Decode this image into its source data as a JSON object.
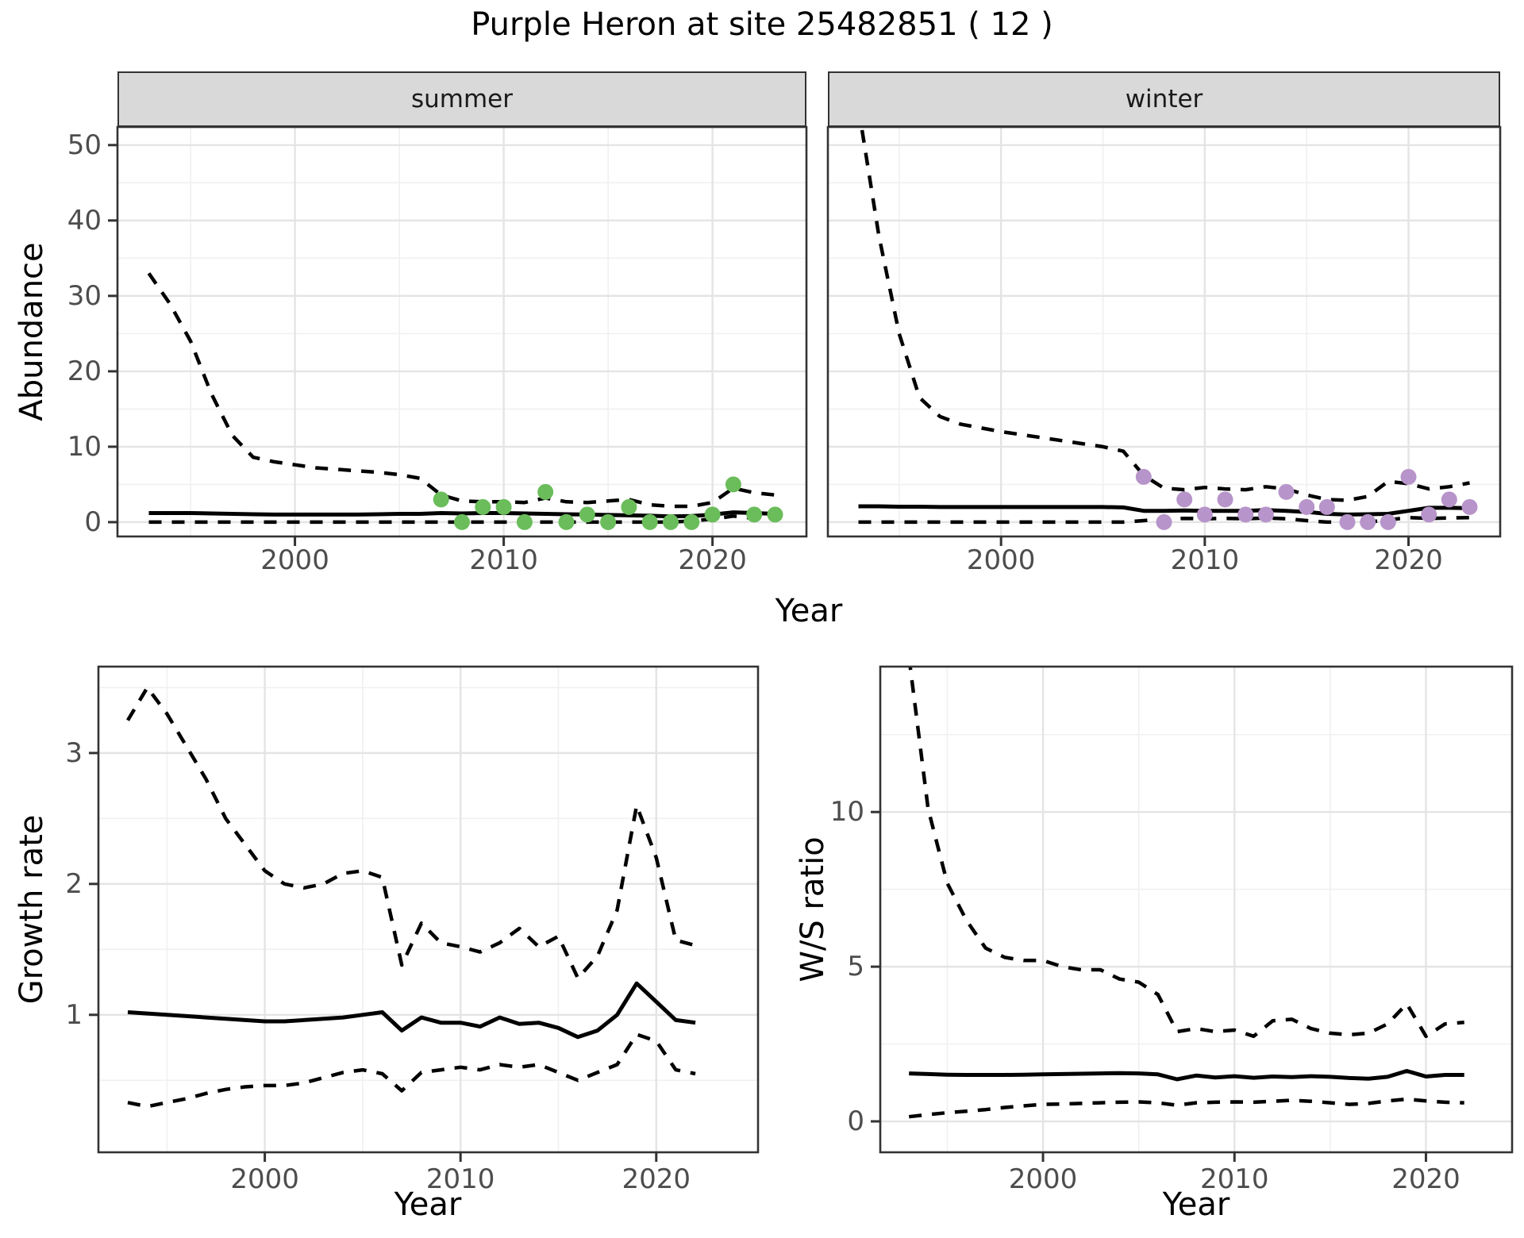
{
  "title": "Purple Heron at site 25482851 ( 12 )",
  "labels": {
    "x_axis": "Year",
    "abundance_axis": "Abundance",
    "growth_axis": "Growth rate",
    "ws_axis": "W/S ratio"
  },
  "facets": {
    "summer": "summer",
    "winter": "winter"
  },
  "colors": {
    "summer_point": "#6abd5a",
    "winter_point": "#b794ca",
    "line": "#000000",
    "grid_major": "#e4e4e4",
    "grid_minor": "#f0f0f0",
    "panel_border": "#333333",
    "strip_bg": "#d9d9d9",
    "tick_text": "#4d4d4d"
  },
  "chart_data": [
    {
      "id": "abundance-summer",
      "type": "line",
      "facet": "summer",
      "ylabel": "Abundance",
      "xlabel": "Year",
      "xlim": [
        1991.5,
        2024.5
      ],
      "ylim": [
        -1.9,
        52.4
      ],
      "xticks": [
        2000,
        2010,
        2020
      ],
      "x_minor": [
        1995,
        2005,
        2015
      ],
      "yticks": [
        0,
        10,
        20,
        30,
        40,
        50
      ],
      "y_minor": [
        5,
        15,
        25,
        35,
        45
      ],
      "years": [
        1993,
        1994,
        1995,
        1996,
        1997,
        1998,
        1999,
        2000,
        2001,
        2002,
        2003,
        2004,
        2005,
        2006,
        2007,
        2008,
        2009,
        2010,
        2011,
        2012,
        2013,
        2014,
        2015,
        2016,
        2017,
        2018,
        2019,
        2020,
        2021,
        2022,
        2023
      ],
      "series": [
        {
          "name": "upper-ci",
          "style": "dashed",
          "values": [
            33,
            29,
            24,
            17,
            11.5,
            8.6,
            8.0,
            7.6,
            7.2,
            7.0,
            6.8,
            6.6,
            6.3,
            5.8,
            3.6,
            2.8,
            2.7,
            2.7,
            2.6,
            3.2,
            2.7,
            2.6,
            2.8,
            3.0,
            2.3,
            2.1,
            2.1,
            2.6,
            4.5,
            3.9,
            3.6
          ]
        },
        {
          "name": "median",
          "style": "solid",
          "values": [
            1.2,
            1.2,
            1.2,
            1.15,
            1.1,
            1.05,
            1.0,
            1.0,
            1.0,
            1.0,
            1.0,
            1.05,
            1.1,
            1.1,
            1.2,
            1.15,
            1.2,
            1.2,
            1.15,
            1.1,
            1.05,
            1.0,
            0.95,
            0.9,
            0.85,
            0.75,
            0.8,
            1.0,
            1.3,
            1.2,
            1.1
          ]
        },
        {
          "name": "lower-ci",
          "style": "dashed",
          "values": [
            0,
            0,
            0,
            0,
            0,
            0,
            0,
            0,
            0,
            0,
            0,
            0,
            0,
            0,
            0,
            0,
            0,
            0,
            0,
            0,
            0,
            0,
            0,
            0,
            0,
            0,
            0.15,
            0.4,
            0.8,
            0.5,
            0.45
          ]
        }
      ],
      "points": {
        "name": "observed-counts",
        "color": "#6abd5a",
        "years": [
          2007,
          2008,
          2009,
          2010,
          2011,
          2012,
          2013,
          2014,
          2015,
          2016,
          2017,
          2018,
          2019,
          2020,
          2021,
          2022,
          2023
        ],
        "values": [
          3,
          0,
          2,
          2,
          0,
          4,
          0,
          1,
          0,
          2,
          0,
          0,
          0,
          1,
          5,
          1,
          1
        ]
      }
    },
    {
      "id": "abundance-winter",
      "type": "line",
      "facet": "winter",
      "ylabel": "Abundance",
      "xlabel": "Year",
      "xlim": [
        1991.5,
        2024.5
      ],
      "ylim": [
        -1.9,
        52.4
      ],
      "xticks": [
        2000,
        2010,
        2020
      ],
      "x_minor": [
        1995,
        2005,
        2015
      ],
      "yticks": [
        0,
        10,
        20,
        30,
        40,
        50
      ],
      "y_minor": [
        5,
        15,
        25,
        35,
        45
      ],
      "years": [
        1993,
        1994,
        1995,
        1996,
        1997,
        1998,
        1999,
        2000,
        2001,
        2002,
        2003,
        2004,
        2005,
        2006,
        2007,
        2008,
        2009,
        2010,
        2011,
        2012,
        2013,
        2014,
        2015,
        2016,
        2017,
        2018,
        2019,
        2020,
        2021,
        2022,
        2023
      ],
      "series": [
        {
          "name": "upper-ci",
          "style": "dashed",
          "values": [
            55,
            38,
            25,
            16.5,
            14,
            13,
            12.5,
            12,
            11.6,
            11.2,
            10.8,
            10.4,
            10,
            9.4,
            6.2,
            4.5,
            4.3,
            4.6,
            4.4,
            4.3,
            4.7,
            4.4,
            3.6,
            3.0,
            2.9,
            3.4,
            5.4,
            5.1,
            4.4,
            4.7,
            5.2
          ]
        },
        {
          "name": "median",
          "style": "solid",
          "values": [
            2.1,
            2.1,
            2.05,
            2.05,
            2.0,
            2.0,
            2.0,
            2.0,
            2.0,
            2.0,
            2.0,
            2.0,
            2.0,
            1.95,
            1.5,
            1.5,
            1.55,
            1.5,
            1.5,
            1.5,
            1.6,
            1.5,
            1.35,
            1.1,
            1.0,
            1.05,
            1.1,
            1.5,
            1.9,
            1.9,
            1.85
          ]
        },
        {
          "name": "lower-ci",
          "style": "dashed",
          "values": [
            0,
            0,
            0,
            0,
            0,
            0,
            0,
            0,
            0,
            0,
            0,
            0,
            0,
            0,
            0.2,
            0.4,
            0.5,
            0.45,
            0.5,
            0.45,
            0.55,
            0.45,
            0.2,
            0,
            0,
            0,
            0.3,
            0.6,
            0.5,
            0.55,
            0.6
          ]
        }
      ],
      "points": {
        "name": "observed-counts",
        "color": "#b794ca",
        "years": [
          2007,
          2008,
          2009,
          2010,
          2011,
          2012,
          2013,
          2014,
          2015,
          2016,
          2017,
          2018,
          2019,
          2020,
          2021,
          2022,
          2023
        ],
        "values": [
          6,
          0,
          3,
          1,
          3,
          1,
          1,
          4,
          2,
          2,
          0,
          0,
          0,
          6,
          1,
          3,
          2
        ]
      }
    },
    {
      "id": "growth-rate",
      "type": "line",
      "facet": null,
      "ylabel": "Growth rate",
      "xlabel": "Year",
      "xlim": [
        1991.5,
        2025.2
      ],
      "ylim": [
        -0.05,
        3.66
      ],
      "xticks": [
        2000,
        2010,
        2020
      ],
      "x_minor": [
        1995,
        2005,
        2015
      ],
      "yticks": [
        1,
        2,
        3
      ],
      "y_minor": [
        0.5,
        1.5,
        2.5,
        3.5
      ],
      "years": [
        1993,
        1994,
        1995,
        1996,
        1997,
        1998,
        1999,
        2000,
        2001,
        2002,
        2003,
        2004,
        2005,
        2006,
        2007,
        2008,
        2009,
        2010,
        2011,
        2012,
        2013,
        2014,
        2015,
        2016,
        2017,
        2018,
        2019,
        2020,
        2021,
        2022
      ],
      "series": [
        {
          "name": "upper-ci",
          "style": "dashed",
          "values": [
            3.25,
            3.5,
            3.3,
            3.05,
            2.8,
            2.5,
            2.3,
            2.1,
            2.0,
            1.97,
            2.0,
            2.08,
            2.1,
            2.05,
            1.38,
            1.7,
            1.55,
            1.52,
            1.48,
            1.55,
            1.66,
            1.52,
            1.6,
            1.28,
            1.45,
            1.8,
            2.6,
            2.2,
            1.57,
            1.53
          ]
        },
        {
          "name": "median",
          "style": "solid",
          "values": [
            1.02,
            1.01,
            1.0,
            0.99,
            0.98,
            0.97,
            0.96,
            0.95,
            0.95,
            0.96,
            0.97,
            0.98,
            1.0,
            1.02,
            0.88,
            0.98,
            0.94,
            0.94,
            0.91,
            0.98,
            0.93,
            0.94,
            0.9,
            0.83,
            0.88,
            1.0,
            1.24,
            1.1,
            0.96,
            0.94
          ]
        },
        {
          "name": "lower-ci",
          "style": "dashed",
          "values": [
            0.33,
            0.3,
            0.33,
            0.36,
            0.4,
            0.43,
            0.45,
            0.46,
            0.46,
            0.48,
            0.52,
            0.56,
            0.58,
            0.55,
            0.42,
            0.56,
            0.58,
            0.6,
            0.58,
            0.62,
            0.6,
            0.62,
            0.56,
            0.5,
            0.56,
            0.62,
            0.85,
            0.8,
            0.58,
            0.55
          ]
        }
      ],
      "points": null
    },
    {
      "id": "ws-ratio",
      "type": "line",
      "facet": null,
      "ylabel": "W/S ratio",
      "xlabel": "Year",
      "xlim": [
        1991.5,
        2024.5
      ],
      "ylim": [
        -1.0,
        14.7
      ],
      "xticks": [
        2000,
        2010,
        2020
      ],
      "x_minor": [
        1995,
        2005,
        2015
      ],
      "yticks": [
        0,
        5,
        10
      ],
      "y_minor": [
        2.5,
        7.5,
        12.5
      ],
      "years": [
        1993,
        1994,
        1995,
        1996,
        1997,
        1998,
        1999,
        2000,
        2001,
        2002,
        2003,
        2004,
        2005,
        2006,
        2007,
        2008,
        2009,
        2010,
        2011,
        2012,
        2013,
        2014,
        2015,
        2016,
        2017,
        2018,
        2019,
        2020,
        2021,
        2022
      ],
      "series": [
        {
          "name": "upper-ci",
          "style": "dashed",
          "values": [
            15,
            10.1,
            7.7,
            6.5,
            5.6,
            5.3,
            5.2,
            5.2,
            5.0,
            4.9,
            4.9,
            4.6,
            4.5,
            4.1,
            2.9,
            3.0,
            2.9,
            2.95,
            2.75,
            3.25,
            3.3,
            3.0,
            2.85,
            2.8,
            2.85,
            3.15,
            3.8,
            2.75,
            3.15,
            3.2
          ]
        },
        {
          "name": "median",
          "style": "solid",
          "values": [
            1.55,
            1.53,
            1.51,
            1.5,
            1.5,
            1.5,
            1.51,
            1.52,
            1.53,
            1.54,
            1.55,
            1.56,
            1.55,
            1.52,
            1.36,
            1.48,
            1.42,
            1.46,
            1.41,
            1.45,
            1.43,
            1.46,
            1.44,
            1.4,
            1.38,
            1.44,
            1.63,
            1.45,
            1.5,
            1.5
          ]
        },
        {
          "name": "lower-ci",
          "style": "dashed",
          "values": [
            0.15,
            0.22,
            0.28,
            0.33,
            0.38,
            0.45,
            0.5,
            0.55,
            0.56,
            0.58,
            0.6,
            0.62,
            0.63,
            0.6,
            0.52,
            0.6,
            0.62,
            0.63,
            0.62,
            0.65,
            0.68,
            0.65,
            0.6,
            0.55,
            0.58,
            0.66,
            0.72,
            0.66,
            0.62,
            0.6
          ]
        }
      ],
      "points": null
    }
  ]
}
